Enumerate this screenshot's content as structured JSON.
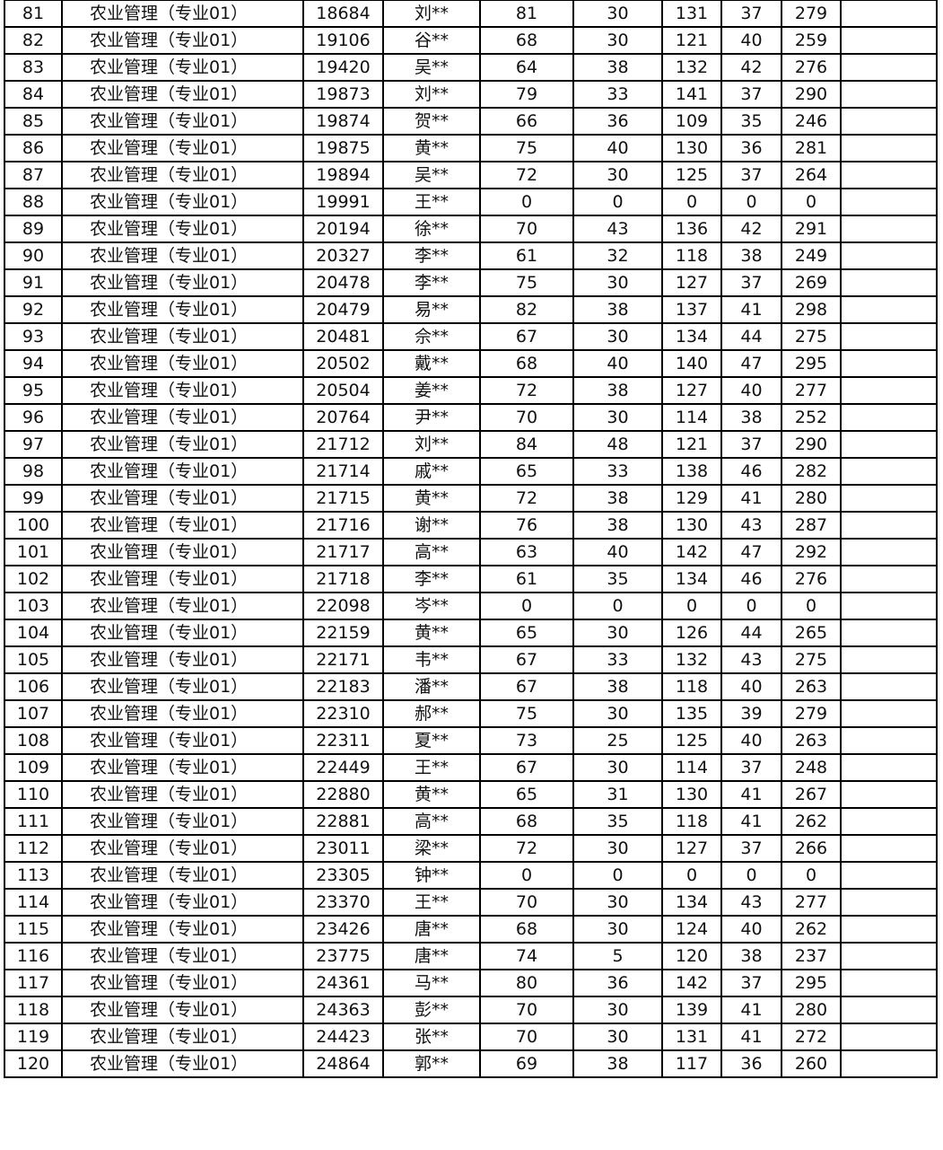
{
  "table": {
    "rows": [
      [
        "81",
        "农业管理（专业01）",
        "18684",
        "刘**",
        "81",
        "30",
        "131",
        "37",
        "279",
        ""
      ],
      [
        "82",
        "农业管理（专业01）",
        "19106",
        "谷**",
        "68",
        "30",
        "121",
        "40",
        "259",
        ""
      ],
      [
        "83",
        "农业管理（专业01）",
        "19420",
        "吴**",
        "64",
        "38",
        "132",
        "42",
        "276",
        ""
      ],
      [
        "84",
        "农业管理（专业01）",
        "19873",
        "刘**",
        "79",
        "33",
        "141",
        "37",
        "290",
        ""
      ],
      [
        "85",
        "农业管理（专业01）",
        "19874",
        "贺**",
        "66",
        "36",
        "109",
        "35",
        "246",
        ""
      ],
      [
        "86",
        "农业管理（专业01）",
        "19875",
        "黄**",
        "75",
        "40",
        "130",
        "36",
        "281",
        ""
      ],
      [
        "87",
        "农业管理（专业01）",
        "19894",
        "吴**",
        "72",
        "30",
        "125",
        "37",
        "264",
        ""
      ],
      [
        "88",
        "农业管理（专业01）",
        "19991",
        "王**",
        "0",
        "0",
        "0",
        "0",
        "0",
        ""
      ],
      [
        "89",
        "农业管理（专业01）",
        "20194",
        "徐**",
        "70",
        "43",
        "136",
        "42",
        "291",
        ""
      ],
      [
        "90",
        "农业管理（专业01）",
        "20327",
        "李**",
        "61",
        "32",
        "118",
        "38",
        "249",
        ""
      ],
      [
        "91",
        "农业管理（专业01）",
        "20478",
        "李**",
        "75",
        "30",
        "127",
        "37",
        "269",
        ""
      ],
      [
        "92",
        "农业管理（专业01）",
        "20479",
        "易**",
        "82",
        "38",
        "137",
        "41",
        "298",
        ""
      ],
      [
        "93",
        "农业管理（专业01）",
        "20481",
        "佘**",
        "67",
        "30",
        "134",
        "44",
        "275",
        ""
      ],
      [
        "94",
        "农业管理（专业01）",
        "20502",
        "戴**",
        "68",
        "40",
        "140",
        "47",
        "295",
        ""
      ],
      [
        "95",
        "农业管理（专业01）",
        "20504",
        "姜**",
        "72",
        "38",
        "127",
        "40",
        "277",
        ""
      ],
      [
        "96",
        "农业管理（专业01）",
        "20764",
        "尹**",
        "70",
        "30",
        "114",
        "38",
        "252",
        ""
      ],
      [
        "97",
        "农业管理（专业01）",
        "21712",
        "刘**",
        "84",
        "48",
        "121",
        "37",
        "290",
        ""
      ],
      [
        "98",
        "农业管理（专业01）",
        "21714",
        "戚**",
        "65",
        "33",
        "138",
        "46",
        "282",
        ""
      ],
      [
        "99",
        "农业管理（专业01）",
        "21715",
        "黄**",
        "72",
        "38",
        "129",
        "41",
        "280",
        ""
      ],
      [
        "100",
        "农业管理（专业01）",
        "21716",
        "谢**",
        "76",
        "38",
        "130",
        "43",
        "287",
        ""
      ],
      [
        "101",
        "农业管理（专业01）",
        "21717",
        "高**",
        "63",
        "40",
        "142",
        "47",
        "292",
        ""
      ],
      [
        "102",
        "农业管理（专业01）",
        "21718",
        "李**",
        "61",
        "35",
        "134",
        "46",
        "276",
        ""
      ],
      [
        "103",
        "农业管理（专业01）",
        "22098",
        "岑**",
        "0",
        "0",
        "0",
        "0",
        "0",
        ""
      ],
      [
        "104",
        "农业管理（专业01）",
        "22159",
        "黄**",
        "65",
        "30",
        "126",
        "44",
        "265",
        ""
      ],
      [
        "105",
        "农业管理（专业01）",
        "22171",
        "韦**",
        "67",
        "33",
        "132",
        "43",
        "275",
        ""
      ],
      [
        "106",
        "农业管理（专业01）",
        "22183",
        "潘**",
        "67",
        "38",
        "118",
        "40",
        "263",
        ""
      ],
      [
        "107",
        "农业管理（专业01）",
        "22310",
        "郝**",
        "75",
        "30",
        "135",
        "39",
        "279",
        ""
      ],
      [
        "108",
        "农业管理（专业01）",
        "22311",
        "夏**",
        "73",
        "25",
        "125",
        "40",
        "263",
        ""
      ],
      [
        "109",
        "农业管理（专业01）",
        "22449",
        "王**",
        "67",
        "30",
        "114",
        "37",
        "248",
        ""
      ],
      [
        "110",
        "农业管理（专业01）",
        "22880",
        "黄**",
        "65",
        "31",
        "130",
        "41",
        "267",
        ""
      ],
      [
        "111",
        "农业管理（专业01）",
        "22881",
        "高**",
        "68",
        "35",
        "118",
        "41",
        "262",
        ""
      ],
      [
        "112",
        "农业管理（专业01）",
        "23011",
        "梁**",
        "72",
        "30",
        "127",
        "37",
        "266",
        ""
      ],
      [
        "113",
        "农业管理（专业01）",
        "23305",
        "钟**",
        "0",
        "0",
        "0",
        "0",
        "0",
        ""
      ],
      [
        "114",
        "农业管理（专业01）",
        "23370",
        "王**",
        "70",
        "30",
        "134",
        "43",
        "277",
        ""
      ],
      [
        "115",
        "农业管理（专业01）",
        "23426",
        "唐**",
        "68",
        "30",
        "124",
        "40",
        "262",
        ""
      ],
      [
        "116",
        "农业管理（专业01）",
        "23775",
        "唐**",
        "74",
        "5",
        "120",
        "38",
        "237",
        ""
      ],
      [
        "117",
        "农业管理（专业01）",
        "24361",
        "马**",
        "80",
        "36",
        "142",
        "37",
        "295",
        ""
      ],
      [
        "118",
        "农业管理（专业01）",
        "24363",
        "彭**",
        "70",
        "30",
        "139",
        "41",
        "280",
        ""
      ],
      [
        "119",
        "农业管理（专业01）",
        "24423",
        "张**",
        "70",
        "30",
        "131",
        "41",
        "272",
        ""
      ],
      [
        "120",
        "农业管理（专业01）",
        "24864",
        "郭**",
        "69",
        "38",
        "117",
        "36",
        "260",
        ""
      ]
    ]
  }
}
